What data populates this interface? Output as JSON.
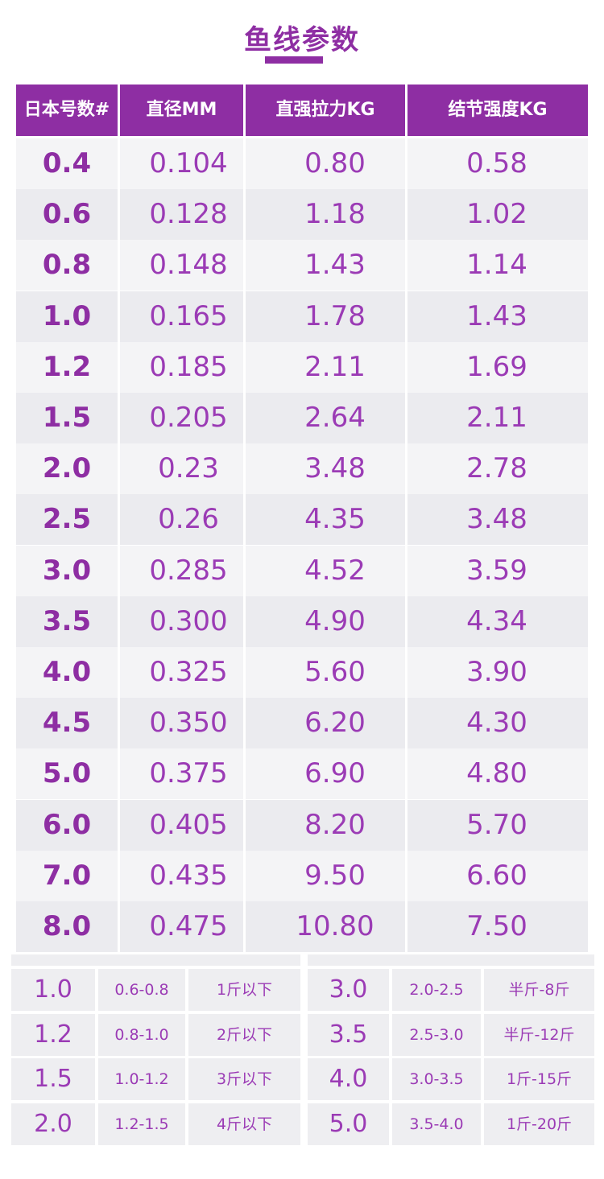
{
  "title": "鱼线参数",
  "colors": {
    "accent": "#8e2ea3",
    "text": "#9b3bb5"
  },
  "table": {
    "headers": [
      "日本号数#",
      "直径MM",
      "直强拉力KG",
      "结节强度KG"
    ],
    "rows": [
      [
        "0.4",
        "0.104",
        "0.80",
        "0.58"
      ],
      [
        "0.6",
        "0.128",
        "1.18",
        "1.02"
      ],
      [
        "0.8",
        "0.148",
        "1.43",
        "1.14"
      ],
      [
        "1.0",
        "0.165",
        "1.78",
        "1.43"
      ],
      [
        "1.2",
        "0.185",
        "2.11",
        "1.69"
      ],
      [
        "1.5",
        "0.205",
        "2.64",
        "2.11"
      ],
      [
        "2.0",
        "0.23",
        "3.48",
        "2.78"
      ],
      [
        "2.5",
        "0.26",
        "4.35",
        "3.48"
      ],
      [
        "3.0",
        "0.285",
        "4.52",
        "3.59"
      ],
      [
        "3.5",
        "0.300",
        "4.90",
        "4.34"
      ],
      [
        "4.0",
        "0.325",
        "5.60",
        "3.90"
      ],
      [
        "4.5",
        "0.350",
        "6.20",
        "4.30"
      ],
      [
        "5.0",
        "0.375",
        "6.90",
        "4.80"
      ],
      [
        "6.0",
        "0.405",
        "8.20",
        "5.70"
      ],
      [
        "7.0",
        "0.435",
        "9.50",
        "6.60"
      ],
      [
        "8.0",
        "0.475",
        "10.80",
        "7.50"
      ]
    ]
  },
  "guide": {
    "rows": [
      [
        "1.0",
        "0.6-0.8",
        "1斤以下",
        "3.0",
        "2.0-2.5",
        "半斤-8斤"
      ],
      [
        "1.2",
        "0.8-1.0",
        "2斤以下",
        "3.5",
        "2.5-3.0",
        "半斤-12斤"
      ],
      [
        "1.5",
        "1.0-1.2",
        "3斤以下",
        "4.0",
        "3.0-3.5",
        "1斤-15斤"
      ],
      [
        "2.0",
        "1.2-1.5",
        "4斤以下",
        "5.0",
        "3.5-4.0",
        "1斤-20斤"
      ]
    ]
  }
}
